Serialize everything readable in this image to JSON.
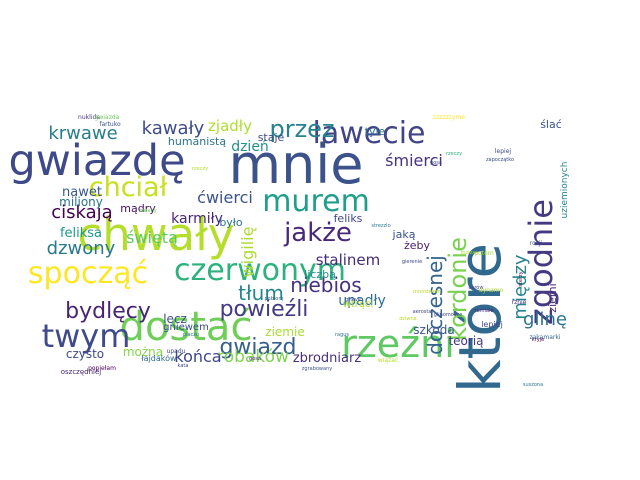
{
  "cloud": {
    "background": "#ffffff",
    "words": [
      {
        "text": "mnie",
        "color": "#3b528b"
      },
      {
        "text": "które",
        "color": "#31688e"
      },
      {
        "text": "chwały",
        "color": "#b5de2b"
      },
      {
        "text": "gwiazdę",
        "color": "#3e4989"
      },
      {
        "text": "dostać",
        "color": "#6ece58"
      },
      {
        "text": "rzeźni",
        "color": "#5ec962"
      },
      {
        "text": "zgodnie",
        "color": "#443983"
      },
      {
        "text": "murem",
        "color": "#1f9e89"
      },
      {
        "text": "spocząć",
        "color": "#fde725"
      },
      {
        "text": "czerwonym",
        "color": "#2db27d"
      },
      {
        "text": "twym",
        "color": "#3e4a89"
      },
      {
        "text": "lawecie",
        "color": "#414487"
      },
      {
        "text": "chciał",
        "color": "#c8e020"
      },
      {
        "text": "jakże",
        "color": "#482878"
      },
      {
        "text": "kordonie",
        "color": "#7ad151"
      },
      {
        "text": "przez",
        "color": "#26828e"
      },
      {
        "text": "bydlęcy",
        "color": "#482475"
      },
      {
        "text": "powieźli",
        "color": "#443a83"
      },
      {
        "text": "gwiazd",
        "color": "#355f8d"
      },
      {
        "text": "tłum",
        "color": "#24878e"
      },
      {
        "text": "niebios",
        "color": "#46327e"
      },
      {
        "text": "doczesnej",
        "color": "#33638d"
      },
      {
        "text": "krwawe",
        "color": "#287d8e"
      },
      {
        "text": "kawały",
        "color": "#3e4c8a"
      },
      {
        "text": "ciskają",
        "color": "#440154"
      },
      {
        "text": "dzwony",
        "color": "#2a788e"
      },
      {
        "text": "między",
        "color": "#25848e"
      },
      {
        "text": "glinę",
        "color": "#2c728e"
      },
      {
        "text": "robaków",
        "color": "#7fd34e"
      },
      {
        "text": "końca",
        "color": "#3f4788"
      },
      {
        "text": "wigilię",
        "color": "#addc30"
      },
      {
        "text": "ćwierci",
        "color": "#3b528b"
      },
      {
        "text": "stalinem",
        "color": "#472c7a"
      },
      {
        "text": "świętą",
        "color": "#5ec962"
      },
      {
        "text": "śmierci",
        "color": "#46337f"
      },
      {
        "text": "zjadły",
        "color": "#b0dd2f"
      },
      {
        "text": "upadły",
        "color": "#2d708e"
      },
      {
        "text": "dzień",
        "color": "#21918c"
      },
      {
        "text": "karmiły",
        "color": "#482576"
      },
      {
        "text": "zbrodniarz",
        "color": "#46307e"
      },
      {
        "text": "feliksa",
        "color": "#1f988b"
      },
      {
        "text": "nawet",
        "color": "#38598c"
      },
      {
        "text": "czysto",
        "color": "#3e4a89"
      },
      {
        "text": "możnа",
        "color": "#86d549"
      },
      {
        "text": "lecz",
        "color": "#3d4e8a"
      },
      {
        "text": "ziemie",
        "color": "#a8db34"
      },
      {
        "text": "miliony",
        "color": "#2a768e"
      },
      {
        "text": "mądry",
        "color": "#471063"
      },
      {
        "text": "było",
        "color": "#2c738e"
      },
      {
        "text": "liczbą",
        "color": "#228c8d"
      },
      {
        "text": "ziemi",
        "color": "#482677"
      },
      {
        "text": "feliks",
        "color": "#3f4889"
      },
      {
        "text": "jaką",
        "color": "#3b518b"
      },
      {
        "text": "żeby",
        "color": "#481b6d"
      },
      {
        "text": "szkoda",
        "color": "#39568c"
      },
      {
        "text": "teorią",
        "color": "#453882"
      },
      {
        "text": "tyle",
        "color": "#2d718e"
      },
      {
        "text": "staje",
        "color": "#3e4989"
      },
      {
        "text": "humanistą",
        "color": "#2c728e"
      },
      {
        "text": "gniewem",
        "color": "#3d4d8a"
      },
      {
        "text": "ślać",
        "color": "#3b528b"
      },
      {
        "text": "uziemionych",
        "color": "#25848e"
      },
      {
        "text": "wtrąci",
        "color": "#addc30"
      },
      {
        "text": "lepiej",
        "color": "#3f4889"
      },
      {
        "text": "łajdaków",
        "color": "#31688e"
      },
      {
        "text": "oszczędniej",
        "color": "#482475"
      },
      {
        "text": "nuklide",
        "color": "#46327e"
      },
      {
        "text": "gwiazda",
        "color": "#6ece58"
      },
      {
        "text": "zzzzzzyme",
        "color": "#fde725"
      },
      {
        "text": "rzeczy",
        "color": "#b5de2b"
      },
      {
        "text": "lepiej",
        "color": "#3e4989"
      },
      {
        "text": "rzeczy",
        "color": "#2db27d"
      },
      {
        "text": "rosji",
        "color": "#3b528b"
      },
      {
        "text": "rznie",
        "color": "#46327e"
      },
      {
        "text": "potem",
        "color": "#a8db34"
      },
      {
        "text": "carów",
        "color": "#3f4788"
      },
      {
        "text": "dynamo",
        "color": "#addc30"
      },
      {
        "text": "zakamarki",
        "color": "#31688e"
      },
      {
        "text": "kryje",
        "color": "#440154"
      },
      {
        "text": "suszona",
        "color": "#2a788e"
      },
      {
        "text": "wiązać",
        "color": "#b5de2b"
      },
      {
        "text": "kata",
        "color": "#3e4989"
      },
      {
        "text": "gosa",
        "color": "#482878"
      },
      {
        "text": "zgrabowany",
        "color": "#3b528b"
      },
      {
        "text": "upadu",
        "color": "#3e4989"
      },
      {
        "text": "piaczu",
        "color": "#2c728e"
      },
      {
        "text": "popiełam",
        "color": "#440154"
      },
      {
        "text": "fartuko",
        "color": "#3b528b"
      },
      {
        "text": "barany",
        "color": "#6ece58"
      },
      {
        "text": "grieve",
        "color": "#3e4989"
      },
      {
        "text": "mnóstwem",
        "color": "#b5de2b"
      },
      {
        "text": "strezzlo",
        "color": "#2a788e"
      },
      {
        "text": "gierenie",
        "color": "#3e4989"
      },
      {
        "text": "aerostat",
        "color": "#3e4989"
      },
      {
        "text": "dziwna",
        "color": "#b5de2b"
      },
      {
        "text": "ramiale",
        "color": "#482878"
      },
      {
        "text": "zapoczątko",
        "color": "#3e4989"
      },
      {
        "text": "gusza",
        "color": "#addc30"
      },
      {
        "text": "pobiorę",
        "color": "#31688e"
      },
      {
        "text": "ragus",
        "color": "#2c728e"
      },
      {
        "text": "gosa",
        "color": "#3f4788"
      },
      {
        "text": "glinomocze",
        "color": "#3e4989"
      },
      {
        "text": "sterzy",
        "color": "#440154"
      }
    ]
  }
}
